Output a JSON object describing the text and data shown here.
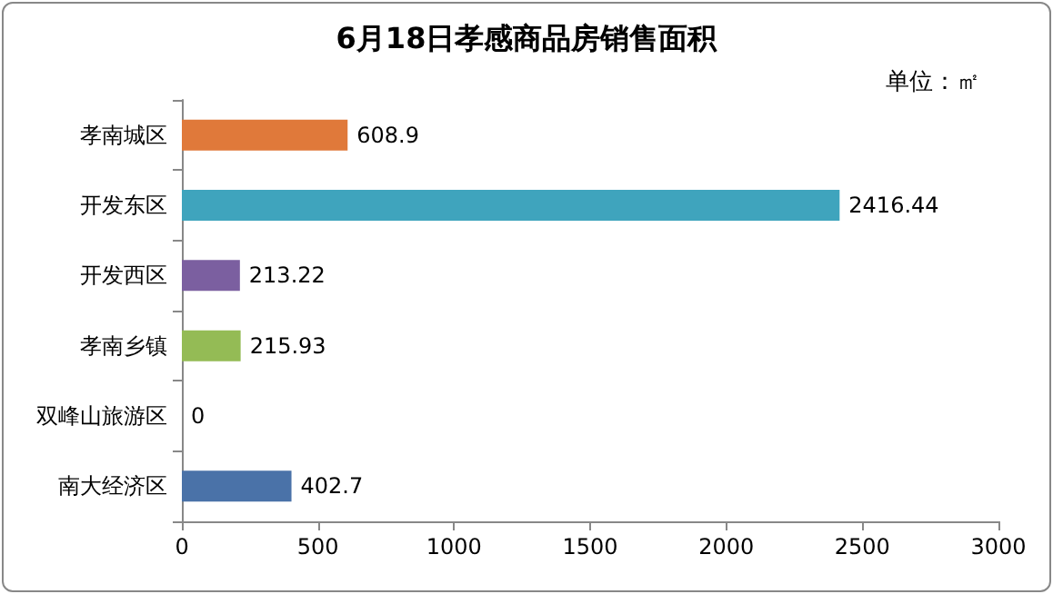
{
  "chart_data": {
    "type": "bar",
    "orientation": "horizontal",
    "title": "6月18日孝感商品房销售面积",
    "annotations": [
      "单位：㎡"
    ],
    "categories": [
      "孝南城区",
      "开发东区",
      "开发西区",
      "孝南乡镇",
      "双峰山旅游区",
      "南大经济区"
    ],
    "values": [
      608.9,
      2416.44,
      213.22,
      215.93,
      0,
      402.7
    ],
    "colors": [
      "#e0793a",
      "#3fa4bd",
      "#7b5fa0",
      "#94bb55",
      "#c0504d",
      "#4a72a8"
    ],
    "xlim": [
      0,
      3000
    ],
    "xticks": [
      0,
      500,
      1000,
      1500,
      2000,
      2500,
      3000
    ],
    "data_labels": true,
    "grid": false
  }
}
